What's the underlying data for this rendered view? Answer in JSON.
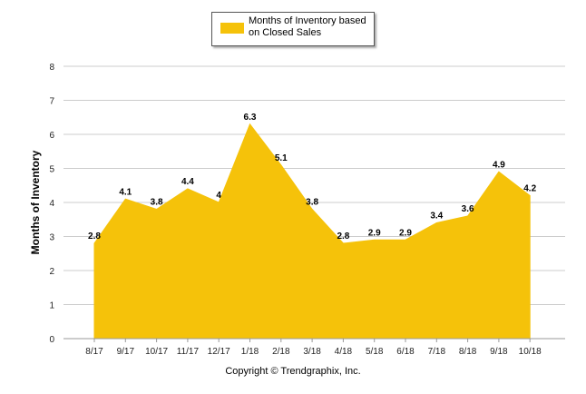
{
  "chart_data": {
    "type": "area",
    "categories": [
      "8/17",
      "9/17",
      "10/17",
      "11/17",
      "12/17",
      "1/18",
      "2/18",
      "3/18",
      "4/18",
      "5/18",
      "6/18",
      "7/18",
      "8/18",
      "9/18",
      "10/18"
    ],
    "series": [
      {
        "name": "Months of Inventory based on Closed Sales",
        "values": [
          2.8,
          4.1,
          3.8,
          4.4,
          4,
          6.3,
          5.1,
          3.8,
          2.8,
          2.9,
          2.9,
          3.4,
          3.6,
          4.9,
          4.2
        ]
      }
    ],
    "data_labels": [
      "2.8",
      "4.1",
      "3.8",
      "4.4",
      "4",
      "6.3",
      "5.1",
      "3.8",
      "2.8",
      "2.9",
      "2.9",
      "3.4",
      "3.6",
      "4.9",
      "4.2"
    ],
    "ylabel": "Months of Inventory",
    "xlabel": "",
    "ylim": [
      0,
      8
    ],
    "yticks": [
      "0",
      "1",
      "2",
      "3",
      "4",
      "5",
      "6",
      "7",
      "8"
    ],
    "grid": true,
    "legend_position": "top-center",
    "color": "#F5C20A"
  },
  "legend": {
    "line1": "Months of Inventory based",
    "line2": "on Closed Sales"
  },
  "footer": {
    "copyright": "Copyright © Trendgraphix, Inc."
  }
}
